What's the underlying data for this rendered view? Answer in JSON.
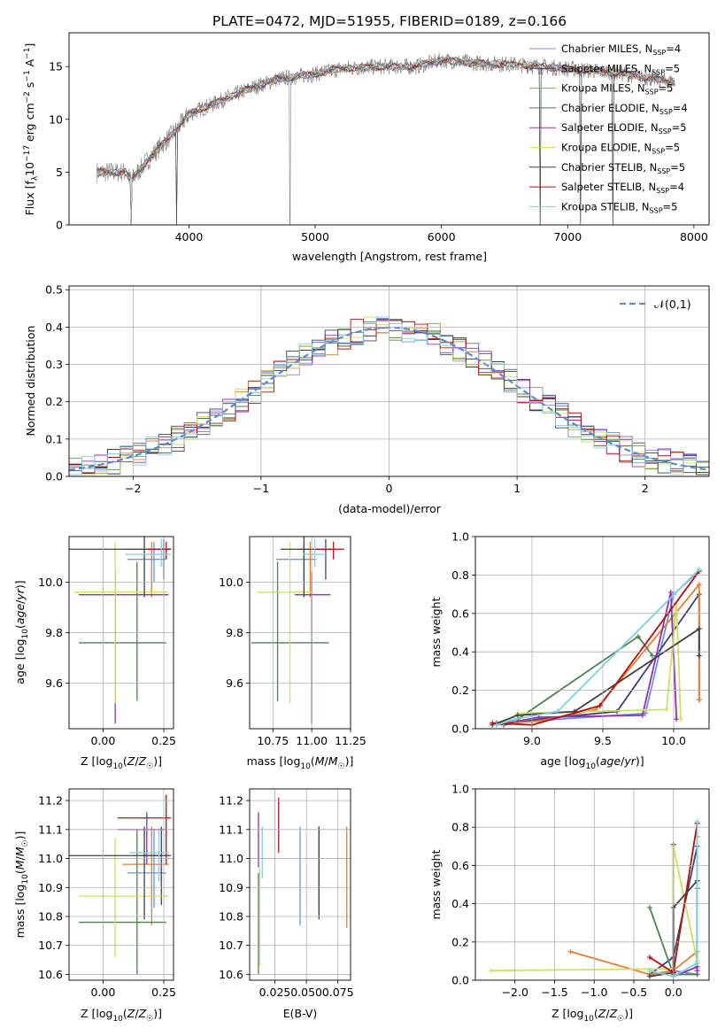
{
  "figure_title": "PLATE=0472, MJD=51955, FIBERID=0189, z=0.166",
  "model_colors": [
    "#7090e0",
    "#404070",
    "#e08030",
    "#508050",
    "#9030b0",
    "#d0e060",
    "#404040",
    "#b01010",
    "#80d0e0"
  ],
  "chart_data": [
    {
      "id": "spectrum",
      "type": "line",
      "title": "PLATE=0472, MJD=51955, FIBERID=0189, z=0.166",
      "xlabel": "wavelength [Angstrom, rest frame]",
      "ylabel": "Flux [fλ10⁻¹⁷ erg cm⁻² s⁻¹ A⁻¹]",
      "xlim": [
        3050,
        8120
      ],
      "ylim": [
        0,
        18.2
      ],
      "xticks": [
        4000,
        5000,
        6000,
        7000,
        8000
      ],
      "yticks": [
        0,
        5,
        10,
        15
      ],
      "grid": false,
      "legend_position": "top-right",
      "data_color": "#808080",
      "continuum": {
        "x": [
          3270,
          3500,
          3540,
          3700,
          3900,
          4000,
          4200,
          4500,
          4700,
          5000,
          5200,
          5500,
          5800,
          6000,
          6300,
          6600,
          6800,
          7000,
          7200,
          7400,
          7600,
          7850
        ],
        "y": [
          5.0,
          5.0,
          4.2,
          6.5,
          9.0,
          10.5,
          11.5,
          13.0,
          13.8,
          14.3,
          14.8,
          15.0,
          15.0,
          15.6,
          15.3,
          15.2,
          15.0,
          14.8,
          14.6,
          14.4,
          14.0,
          13.5
        ]
      },
      "series": [
        {
          "name": "Chabrier MILES, N_SSP=4"
        },
        {
          "name": "Salpeter MILES, N_SSP=5"
        },
        {
          "name": "Kroupa MILES, N_SSP=5"
        },
        {
          "name": "Chabrier ELODIE, N_SSP=4"
        },
        {
          "name": "Salpeter ELODIE, N_SSP=5"
        },
        {
          "name": "Kroupa ELODIE, N_SSP=5"
        },
        {
          "name": "Chabrier STELIB, N_SSP=5"
        },
        {
          "name": "Salpeter STELIB, N_SSP=4"
        },
        {
          "name": "Kroupa STELIB, N_SSP=5"
        }
      ],
      "legend_labels": [
        [
          "Chabrier MILES, N",
          "SSP",
          "=4"
        ],
        [
          "Salpeter MILES, N",
          "SSP",
          "=5"
        ],
        [
          "Kroupa MILES, N",
          "SSP",
          "=5"
        ],
        [
          "Chabrier ELODIE, N",
          "SSP",
          "=4"
        ],
        [
          "Salpeter ELODIE, N",
          "SSP",
          "=5"
        ],
        [
          "Kroupa ELODIE, N",
          "SSP",
          "=5"
        ],
        [
          "Chabrier STELIB, N",
          "SSP",
          "=5"
        ],
        [
          "Salpeter STELIB, N",
          "SSP",
          "=4"
        ],
        [
          "Kroupa STELIB, N",
          "SSP",
          "=5"
        ]
      ]
    },
    {
      "id": "residuals",
      "type": "line",
      "xlabel": "(data-model)/error",
      "ylabel": "Normed distribution",
      "xlim": [
        -2.5,
        2.5
      ],
      "ylim": [
        0,
        0.51
      ],
      "xticks": [
        -2,
        -1,
        0,
        1,
        2
      ],
      "yticks": [
        0.0,
        0.1,
        0.2,
        0.3,
        0.4,
        0.5
      ],
      "grid": true,
      "legend_position": "top-right",
      "reference_curve": {
        "name": "𝒩(0,1)",
        "mean": 0,
        "sigma": 1,
        "color": "#5b8ad0"
      },
      "histogram": {
        "bin_width": 0.1,
        "range": [
          -2.5,
          2.5
        ],
        "note": "nine step histograms close to the normal curve"
      }
    },
    {
      "id": "age_vs_Z",
      "type": "errorbar",
      "xlabel": "Z [log₁₀(Z/Z☉)]",
      "ylabel": "age  [log₁₀(age/yr)]",
      "xlim": [
        -0.14,
        0.29
      ],
      "ylim": [
        9.42,
        10.18
      ],
      "xticks": [
        0.0,
        0.25
      ],
      "yticks": [
        9.6,
        9.8,
        10.0
      ],
      "grid": true,
      "points": [
        {
          "x": 0.21,
          "y": 10.09,
          "xerr": [
            0.11,
            0.05
          ],
          "yerr": [
            0.09,
            0.07
          ]
        },
        {
          "x": 0.25,
          "y": 10.13,
          "xerr": [
            0.05,
            0.03
          ],
          "yerr": [
            0.12,
            0.04
          ]
        },
        {
          "x": 0.2,
          "y": 10.13,
          "xerr": [
            0.12,
            0.07
          ],
          "yerr": [
            0.19,
            0.03
          ]
        },
        {
          "x": 0.14,
          "y": 9.76,
          "xerr": [
            0.24,
            0.12
          ],
          "yerr": [
            0.23,
            0.32
          ]
        },
        {
          "x": 0.05,
          "y": 9.95,
          "xerr": [
            0.15,
            0.22
          ],
          "yerr": [
            0.51,
            0.09
          ]
        },
        {
          "x": 0.05,
          "y": 9.96,
          "xerr": [
            0.17,
            0.22
          ],
          "yerr": [
            0.44,
            0.2
          ]
        },
        {
          "x": 0.17,
          "y": 10.13,
          "xerr": [
            0.31,
            0.1
          ],
          "yerr": [
            0.19,
            0.05
          ]
        },
        {
          "x": 0.26,
          "y": 10.13,
          "xerr": [
            0.08,
            0.02
          ],
          "yerr": [
            0.04,
            0.03
          ]
        },
        {
          "x": 0.24,
          "y": 10.11,
          "xerr": [
            0.15,
            0.04
          ],
          "yerr": [
            0.05,
            0.06
          ]
        }
      ]
    },
    {
      "id": "age_vs_mass",
      "type": "errorbar",
      "xlabel": "mass [log₁₀(M/M☉)]",
      "ylabel": "",
      "xlim": [
        10.6,
        11.25
      ],
      "ylim": [
        9.42,
        10.18
      ],
      "xticks": [
        10.75,
        11.0,
        11.25
      ],
      "yticks": [
        9.6,
        9.8,
        10.0
      ],
      "grid": true,
      "points": [
        {
          "x": 10.95,
          "y": 10.09,
          "xerr": [
            0.18,
            0.08
          ],
          "yerr": [
            0.09,
            0.07
          ]
        },
        {
          "x": 11.09,
          "y": 10.13,
          "xerr": [
            0.1,
            0.06
          ],
          "yerr": [
            0.12,
            0.04
          ]
        },
        {
          "x": 10.99,
          "y": 10.13,
          "xerr": [
            0.08,
            0.16
          ],
          "yerr": [
            0.19,
            0.03
          ]
        },
        {
          "x": 10.78,
          "y": 9.76,
          "xerr": [
            0.17,
            0.33
          ],
          "yerr": [
            0.23,
            0.32
          ]
        },
        {
          "x": 11.0,
          "y": 9.95,
          "xerr": [
            0.11,
            0.12
          ],
          "yerr": [
            0.51,
            0.09
          ]
        },
        {
          "x": 10.86,
          "y": 9.96,
          "xerr": [
            0.21,
            0.14
          ],
          "yerr": [
            0.44,
            0.2
          ]
        },
        {
          "x": 10.95,
          "y": 10.13,
          "xerr": [
            0.15,
            0.1
          ],
          "yerr": [
            0.19,
            0.05
          ]
        },
        {
          "x": 11.14,
          "y": 10.13,
          "xerr": [
            0.12,
            0.07
          ],
          "yerr": [
            0.04,
            0.03
          ]
        },
        {
          "x": 11.02,
          "y": 10.11,
          "xerr": [
            0.08,
            0.08
          ],
          "yerr": [
            0.05,
            0.06
          ]
        }
      ]
    },
    {
      "id": "weight_vs_age",
      "type": "line",
      "xlabel": "age  [log₁₀(age/yr)]",
      "ylabel": "mass weight",
      "xlim": [
        8.6,
        10.25
      ],
      "ylim": [
        0,
        1.0
      ],
      "xticks": [
        9.0,
        9.5,
        10.0
      ],
      "yticks": [
        0.0,
        0.2,
        0.4,
        0.6,
        0.8,
        1.0
      ],
      "grid": true,
      "series": [
        {
          "x": [
            8.75,
            9.0,
            9.8,
            10.0,
            10.18
          ],
          "y": [
            0.03,
            0.04,
            0.08,
            0.7,
            0.82
          ]
        },
        {
          "x": [
            8.8,
            9.05,
            9.6,
            10.18,
            10.18
          ],
          "y": [
            0.02,
            0.05,
            0.09,
            0.7,
            0.15
          ]
        },
        {
          "x": [
            8.85,
            9.05,
            9.45,
            10.18,
            10.18
          ],
          "y": [
            0.03,
            0.04,
            0.1,
            0.75,
            0.15
          ]
        },
        {
          "x": [
            8.75,
            8.9,
            9.75,
            9.85
          ],
          "y": [
            0.03,
            0.05,
            0.48,
            0.38
          ]
        },
        {
          "x": [
            8.75,
            9.05,
            9.78,
            9.98,
            10.02
          ],
          "y": [
            0.02,
            0.06,
            0.07,
            0.71,
            0.05
          ]
        },
        {
          "x": [
            8.8,
            8.9,
            9.95,
            10.02,
            10.05
          ],
          "y": [
            0.03,
            0.08,
            0.1,
            0.65,
            0.05
          ]
        },
        {
          "x": [
            8.72,
            8.9,
            9.3,
            10.18,
            10.18
          ],
          "y": [
            0.02,
            0.07,
            0.09,
            0.52,
            0.38
          ]
        },
        {
          "x": [
            8.72,
            9.0,
            9.48,
            10.18
          ],
          "y": [
            0.03,
            0.02,
            0.12,
            0.82
          ]
        },
        {
          "x": [
            8.75,
            8.88,
            9.18,
            10.18
          ],
          "y": [
            0.02,
            0.05,
            0.09,
            0.83
          ]
        }
      ]
    },
    {
      "id": "mass_vs_Z",
      "type": "errorbar",
      "xlabel": "Z [log₁₀(Z/Z☉)]",
      "ylabel": "mass [log₁₀(M/M☉)]",
      "xlim": [
        -0.14,
        0.29
      ],
      "ylim": [
        10.58,
        11.24
      ],
      "xticks": [
        0.0,
        0.25
      ],
      "yticks": [
        10.6,
        10.7,
        10.8,
        10.9,
        11.0,
        11.1,
        11.2
      ],
      "grid": true,
      "points": [
        {
          "x": 0.21,
          "y": 10.95,
          "xerr": [
            0.11,
            0.05
          ],
          "yerr": [
            0.12,
            0.15
          ]
        },
        {
          "x": 0.24,
          "y": 11.01,
          "xerr": [
            0.08,
            0.04
          ],
          "yerr": [
            0.17,
            0.1
          ]
        },
        {
          "x": 0.2,
          "y": 10.98,
          "xerr": [
            0.12,
            0.07
          ],
          "yerr": [
            0.21,
            0.13
          ]
        },
        {
          "x": 0.14,
          "y": 10.78,
          "xerr": [
            0.24,
            0.12
          ],
          "yerr": [
            0.18,
            0.32
          ]
        },
        {
          "x": 0.18,
          "y": 11.1,
          "xerr": [
            0.12,
            0.08
          ],
          "yerr": [
            0.12,
            0.06
          ]
        },
        {
          "x": 0.05,
          "y": 10.87,
          "xerr": [
            0.15,
            0.22
          ],
          "yerr": [
            0.21,
            0.2
          ]
        },
        {
          "x": 0.17,
          "y": 11.01,
          "xerr": [
            0.31,
            0.1
          ],
          "yerr": [
            0.22,
            0.1
          ]
        },
        {
          "x": 0.26,
          "y": 11.14,
          "xerr": [
            0.2,
            0.02
          ],
          "yerr": [
            0.16,
            0.08
          ]
        },
        {
          "x": 0.23,
          "y": 11.02,
          "xerr": [
            0.12,
            0.04
          ],
          "yerr": [
            0.1,
            0.08
          ]
        }
      ]
    },
    {
      "id": "mass_vs_ebv",
      "type": "errorbar",
      "xlabel": "E(B-V)",
      "ylabel": "",
      "xlim": [
        0.005,
        0.085
      ],
      "ylim": [
        10.58,
        11.24
      ],
      "xticks": [
        0.025,
        0.05,
        0.075
      ],
      "yticks": [
        10.6,
        10.7,
        10.8,
        10.9,
        11.0,
        11.1,
        11.2
      ],
      "grid": true,
      "points": [
        {
          "x": 0.045,
          "y": 10.95,
          "yerr": [
            0.18,
            0.16
          ]
        },
        {
          "x": 0.06,
          "y": 11.01,
          "yerr": [
            0.2,
            0.1
          ]
        },
        {
          "x": 0.082,
          "y": 10.98,
          "yerr": [
            0.22,
            0.13
          ]
        },
        {
          "x": 0.012,
          "y": 10.75,
          "yerr": [
            0.15,
            0.2
          ]
        },
        {
          "x": 0.012,
          "y": 11.07,
          "yerr": [
            0.1,
            0.09
          ]
        },
        {
          "x": 0.013,
          "y": 10.85,
          "yerr": [
            0.22,
            0.12
          ]
        },
        {
          "x": 0.06,
          "y": 11.01,
          "yerr": [
            0.22,
            0.1
          ]
        },
        {
          "x": 0.028,
          "y": 11.14,
          "yerr": [
            0.12,
            0.07
          ]
        },
        {
          "x": 0.015,
          "y": 11.03,
          "yerr": [
            0.1,
            0.08
          ]
        }
      ]
    },
    {
      "id": "weight_vs_Z",
      "type": "line",
      "xlabel": "Z [log₁₀(Z/Z☉)]",
      "ylabel": "mass weight",
      "xlim": [
        -2.5,
        0.45
      ],
      "ylim": [
        0,
        1.0
      ],
      "xticks": [
        -2.0,
        -1.5,
        -1.0,
        -0.5,
        0.0
      ],
      "yticks": [
        0.0,
        0.2,
        0.4,
        0.6,
        0.8,
        1.0
      ],
      "grid": true,
      "series": [
        {
          "x": [
            -0.3,
            0.0,
            0.3,
            0.3
          ],
          "y": [
            0.03,
            0.05,
            0.03,
            0.82
          ]
        },
        {
          "x": [
            -0.3,
            0.0,
            0.3
          ],
          "y": [
            0.03,
            0.12,
            0.7
          ]
        },
        {
          "x": [
            -1.3,
            -0.3,
            0.0,
            0.3,
            0.3
          ],
          "y": [
            0.15,
            0.03,
            0.05,
            0.15,
            0.75
          ]
        },
        {
          "x": [
            -0.3,
            0.0,
            0.3,
            0.3
          ],
          "y": [
            0.38,
            0.03,
            0.03,
            0.48
          ]
        },
        {
          "x": [
            0.0,
            0.0,
            0.3,
            0.3
          ],
          "y": [
            0.71,
            0.02,
            0.07,
            0.05
          ]
        },
        {
          "x": [
            -2.3,
            0.0,
            0.0,
            0.3
          ],
          "y": [
            0.05,
            0.06,
            0.7,
            0.1
          ]
        },
        {
          "x": [
            -0.3,
            0.0,
            0.0,
            0.3,
            0.3
          ],
          "y": [
            0.02,
            0.04,
            0.38,
            0.52,
            0.09
          ]
        },
        {
          "x": [
            -0.3,
            0.0,
            0.3
          ],
          "y": [
            0.12,
            0.04,
            0.82
          ]
        },
        {
          "x": [
            -0.3,
            0.0,
            0.3,
            0.3
          ],
          "y": [
            0.05,
            0.02,
            0.09,
            0.83
          ]
        }
      ]
    }
  ]
}
